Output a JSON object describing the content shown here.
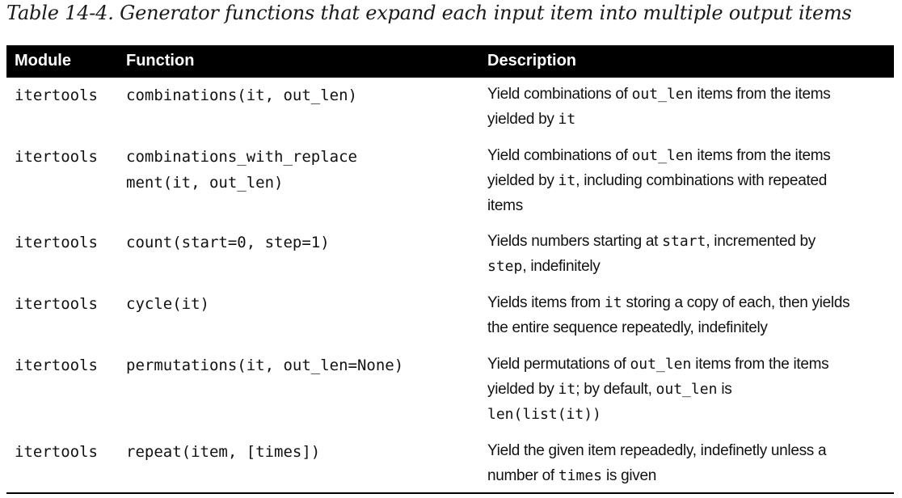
{
  "caption": "Table 14-4. Generator functions that expand each input item into multiple output items",
  "headers": {
    "module": "Module",
    "function": "Function",
    "description": "Description"
  },
  "rows": [
    {
      "module": "itertools",
      "function_lines": [
        "combinations(it, out_len)"
      ],
      "desc_lines": [
        [
          {
            "t": "Yield combinations of "
          },
          {
            "c": "out_len"
          },
          {
            "t": " items from the items"
          }
        ],
        [
          {
            "t": "yielded by "
          },
          {
            "c": "it"
          }
        ]
      ]
    },
    {
      "module": "itertools",
      "function_lines": [
        "combinations_with_replace",
        "ment(it, out_len)"
      ],
      "desc_lines": [
        [
          {
            "t": "Yield combinations of "
          },
          {
            "c": "out_len"
          },
          {
            "t": " items from the items"
          }
        ],
        [
          {
            "t": "yielded by "
          },
          {
            "c": "it"
          },
          {
            "t": ", including combinations with repeated"
          }
        ],
        [
          {
            "t": "items"
          }
        ]
      ]
    },
    {
      "module": "itertools",
      "function_lines": [
        "count(start=0, step=1)"
      ],
      "desc_lines": [
        [
          {
            "t": "Yields numbers starting at "
          },
          {
            "c": "start"
          },
          {
            "t": ", incremented by"
          }
        ],
        [
          {
            "c": "step"
          },
          {
            "t": ", indefinitely"
          }
        ]
      ]
    },
    {
      "module": "itertools",
      "function_lines": [
        "cycle(it)"
      ],
      "desc_lines": [
        [
          {
            "t": "Yields items from "
          },
          {
            "c": "it"
          },
          {
            "t": " storing a copy of each, then yields"
          }
        ],
        [
          {
            "t": "the entire sequence repeatedly, indefinitely"
          }
        ]
      ]
    },
    {
      "module": "itertools",
      "function_lines": [
        "permutations(it, out_len=None)"
      ],
      "desc_lines": [
        [
          {
            "t": "Yield permutations of "
          },
          {
            "c": "out_len"
          },
          {
            "t": " items from the items"
          }
        ],
        [
          {
            "t": "yielded by "
          },
          {
            "c": "it"
          },
          {
            "t": "; by default, "
          },
          {
            "c": "out_len"
          },
          {
            "t": " is"
          }
        ],
        [
          {
            "c": "len(list(it))"
          }
        ]
      ]
    },
    {
      "module": "itertools",
      "function_lines": [
        "repeat(item, [times])"
      ],
      "desc_lines": [
        [
          {
            "t": "Yield the given item repeadedly, indefinetly unless a"
          }
        ],
        [
          {
            "t": "number of "
          },
          {
            "c": "times"
          },
          {
            "t": " is given"
          }
        ]
      ]
    }
  ]
}
